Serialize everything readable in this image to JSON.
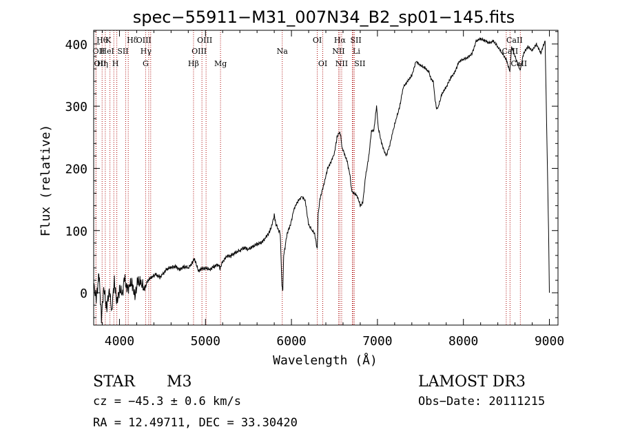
{
  "chart_data": {
    "type": "line",
    "title": "spec−55911−M31_007N34_B2_sp01−145.fits",
    "xlabel": "Wavelength (Å)",
    "ylabel": "Flux (relative)",
    "xlim": [
      3700,
      9100
    ],
    "ylim": [
      -52,
      422
    ],
    "x_ticks": [
      4000,
      5000,
      6000,
      7000,
      8000,
      9000
    ],
    "y_ticks": [
      0,
      100,
      200,
      300,
      400
    ],
    "grid": false,
    "line_color": "#000000",
    "marker_color": "#aa0000",
    "series": [
      {
        "name": "flux",
        "points": [
          [
            3700,
            15
          ],
          [
            3730,
            -10
          ],
          [
            3760,
            30
          ],
          [
            3790,
            -40
          ],
          [
            3820,
            10
          ],
          [
            3850,
            -25
          ],
          [
            3880,
            5
          ],
          [
            3910,
            -30
          ],
          [
            3940,
            20
          ],
          [
            3970,
            -15
          ],
          [
            4000,
            5
          ],
          [
            4030,
            -5
          ],
          [
            4060,
            25
          ],
          [
            4090,
            5
          ],
          [
            4120,
            10
          ],
          [
            4150,
            15
          ],
          [
            4180,
            -5
          ],
          [
            4210,
            20
          ],
          [
            4250,
            15
          ],
          [
            4290,
            5
          ],
          [
            4330,
            20
          ],
          [
            4380,
            25
          ],
          [
            4420,
            30
          ],
          [
            4470,
            25
          ],
          [
            4500,
            30
          ],
          [
            4550,
            38
          ],
          [
            4600,
            40
          ],
          [
            4650,
            42
          ],
          [
            4700,
            38
          ],
          [
            4750,
            42
          ],
          [
            4800,
            40
          ],
          [
            4830,
            45
          ],
          [
            4850,
            50
          ],
          [
            4870,
            55
          ],
          [
            4890,
            48
          ],
          [
            4920,
            35
          ],
          [
            4950,
            38
          ],
          [
            5000,
            40
          ],
          [
            5050,
            38
          ],
          [
            5100,
            42
          ],
          [
            5150,
            45
          ],
          [
            5170,
            38
          ],
          [
            5200,
            50
          ],
          [
            5250,
            58
          ],
          [
            5300,
            60
          ],
          [
            5350,
            65
          ],
          [
            5400,
            68
          ],
          [
            5450,
            72
          ],
          [
            5500,
            70
          ],
          [
            5550,
            75
          ],
          [
            5600,
            78
          ],
          [
            5650,
            80
          ],
          [
            5700,
            88
          ],
          [
            5750,
            100
          ],
          [
            5780,
            112
          ],
          [
            5800,
            125
          ],
          [
            5820,
            110
          ],
          [
            5850,
            100
          ],
          [
            5870,
            95
          ],
          [
            5890,
            10
          ],
          [
            5900,
            5
          ],
          [
            5910,
            60
          ],
          [
            5950,
            95
          ],
          [
            5990,
            110
          ],
          [
            6030,
            135
          ],
          [
            6080,
            148
          ],
          [
            6120,
            155
          ],
          [
            6160,
            148
          ],
          [
            6200,
            110
          ],
          [
            6240,
            100
          ],
          [
            6270,
            95
          ],
          [
            6290,
            78
          ],
          [
            6300,
            70
          ],
          [
            6310,
            125
          ],
          [
            6330,
            150
          ],
          [
            6350,
            160
          ],
          [
            6380,
            175
          ],
          [
            6420,
            200
          ],
          [
            6460,
            210
          ],
          [
            6500,
            225
          ],
          [
            6530,
            250
          ],
          [
            6560,
            258
          ],
          [
            6570,
            255
          ],
          [
            6590,
            232
          ],
          [
            6620,
            222
          ],
          [
            6650,
            210
          ],
          [
            6680,
            190
          ],
          [
            6700,
            165
          ],
          [
            6720,
            160
          ],
          [
            6750,
            158
          ],
          [
            6780,
            150
          ],
          [
            6800,
            140
          ],
          [
            6830,
            145
          ],
          [
            6860,
            185
          ],
          [
            6900,
            220
          ],
          [
            6930,
            260
          ],
          [
            6960,
            262
          ],
          [
            6990,
            300
          ],
          [
            7010,
            265
          ],
          [
            7050,
            240
          ],
          [
            7100,
            220
          ],
          [
            7140,
            235
          ],
          [
            7180,
            260
          ],
          [
            7220,
            280
          ],
          [
            7260,
            300
          ],
          [
            7300,
            330
          ],
          [
            7350,
            340
          ],
          [
            7400,
            350
          ],
          [
            7450,
            372
          ],
          [
            7500,
            365
          ],
          [
            7550,
            362
          ],
          [
            7600,
            355
          ],
          [
            7620,
            345
          ],
          [
            7650,
            340
          ],
          [
            7670,
            310
          ],
          [
            7690,
            295
          ],
          [
            7710,
            300
          ],
          [
            7750,
            320
          ],
          [
            7800,
            330
          ],
          [
            7850,
            345
          ],
          [
            7900,
            355
          ],
          [
            7950,
            372
          ],
          [
            8000,
            375
          ],
          [
            8050,
            378
          ],
          [
            8100,
            385
          ],
          [
            8150,
            405
          ],
          [
            8200,
            408
          ],
          [
            8250,
            405
          ],
          [
            8300,
            402
          ],
          [
            8350,
            405
          ],
          [
            8400,
            395
          ],
          [
            8450,
            385
          ],
          [
            8500,
            375
          ],
          [
            8540,
            355
          ],
          [
            8560,
            395
          ],
          [
            8600,
            380
          ],
          [
            8660,
            358
          ],
          [
            8700,
            385
          ],
          [
            8750,
            395
          ],
          [
            8800,
            390
          ],
          [
            8850,
            400
          ],
          [
            8900,
            385
          ],
          [
            8950,
            405
          ],
          [
            8990,
            100
          ],
          [
            9000,
            0
          ]
        ]
      }
    ],
    "line_markers": [
      {
        "name": "Hθ",
        "wavelength": 3798,
        "label_row": 1,
        "dx": 0
      },
      {
        "name": "OII",
        "wavelength": 3727,
        "label_row": 2,
        "dx": 4
      },
      {
        "name": "OII",
        "wavelength": 3727,
        "label_row": 3,
        "dx": 6
      },
      {
        "name": "Hη",
        "wavelength": 3835,
        "label_row": 3,
        "dx": -4
      },
      {
        "name": "K",
        "wavelength": 3934,
        "label_row": 1,
        "dx": -8
      },
      {
        "name": "HeI",
        "wavelength": 3889,
        "label_row": 2,
        "dx": -4
      },
      {
        "name": "H",
        "wavelength": 3969,
        "label_row": 3,
        "dx": -2
      },
      {
        "name": "SII",
        "wavelength": 4072,
        "label_row": 2,
        "dx": -4
      },
      {
        "name": "Hδ",
        "wavelength": 4102,
        "label_row": 1,
        "dx": 6
      },
      {
        "name": "OIII",
        "wavelength": 4363,
        "label_row": 1,
        "dx": -10
      },
      {
        "name": "Hγ",
        "wavelength": 4340,
        "label_row": 2,
        "dx": -4
      },
      {
        "name": "G",
        "wavelength": 4304,
        "label_row": 3,
        "dx": 0
      },
      {
        "name": "OIII",
        "wavelength": 4959,
        "label_row": 1,
        "dx": 4
      },
      {
        "name": "OIII",
        "wavelength": 5007,
        "label_row": 2,
        "dx": -10
      },
      {
        "name": "Hβ",
        "wavelength": 4861,
        "label_row": 3,
        "dx": 0
      },
      {
        "name": "Mg",
        "wavelength": 5175,
        "label_row": 3,
        "dx": 0
      },
      {
        "name": "Na",
        "wavelength": 5893,
        "label_row": 2,
        "dx": 0
      },
      {
        "name": "OI",
        "wavelength": 6300,
        "label_row": 1,
        "dx": 0
      },
      {
        "name": "OI",
        "wavelength": 6364,
        "label_row": 3,
        "dx": 0
      },
      {
        "name": "Hα",
        "wavelength": 6563,
        "label_row": 1,
        "dx": 0
      },
      {
        "name": "NII",
        "wavelength": 6548,
        "label_row": 2,
        "dx": 0
      },
      {
        "name": "NII",
        "wavelength": 6584,
        "label_row": 3,
        "dx": 0
      },
      {
        "name": "SII",
        "wavelength": 6717,
        "label_row": 1,
        "dx": 4
      },
      {
        "name": "Li",
        "wavelength": 6708,
        "label_row": 2,
        "dx": 6
      },
      {
        "name": "SII",
        "wavelength": 6731,
        "label_row": 3,
        "dx": 8
      },
      {
        "name": "CaII",
        "wavelength": 8498,
        "label_row": 1,
        "dx": 12
      },
      {
        "name": "CaII",
        "wavelength": 8542,
        "label_row": 2,
        "dx": 0
      },
      {
        "name": "CaII",
        "wavelength": 8662,
        "label_row": 3,
        "dx": -2
      }
    ]
  },
  "info": {
    "object_class": "STAR",
    "subclass": "M3",
    "survey": "LAMOST DR3",
    "cz": "cz = −45.3 ± 0.6 km/s",
    "obs_date": "Obs−Date: 20111215",
    "coords": "RA =  12.49711, DEC =  33.30420"
  }
}
